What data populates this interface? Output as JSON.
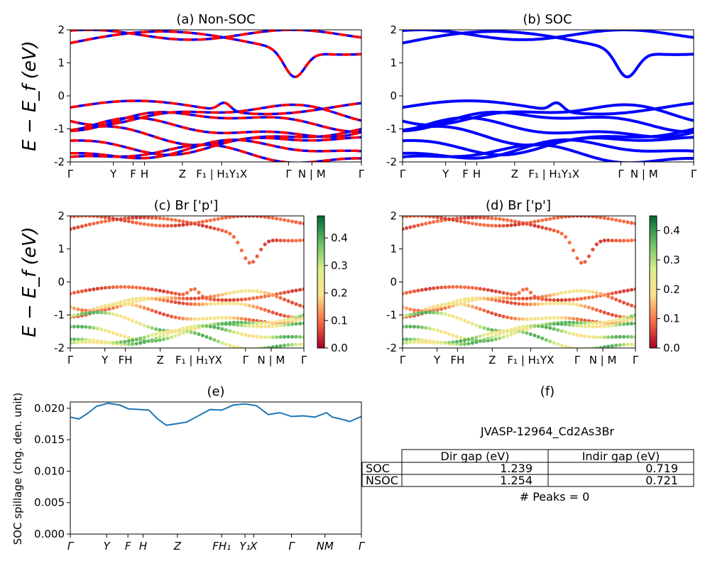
{
  "panels": {
    "a": {
      "title": "(a) Non-SOC"
    },
    "b": {
      "title": "(b) SOC"
    },
    "c": {
      "title": "(c)  Br ['p']"
    },
    "d": {
      "title": "(d) Br ['p']"
    },
    "e": {
      "title": "(e)"
    },
    "f": {
      "title": "(f)"
    }
  },
  "ylabels": {
    "band": "E − E_f (eV)",
    "spillage": "SOC spillage (chg. den. unit)"
  },
  "band_kpoints_ab": [
    "Γ",
    "Y",
    "F",
    "H",
    "Z",
    "F₁ | H₁Y₁X",
    "Γ",
    "N | M",
    "Γ"
  ],
  "band_kpoints_cd": [
    "Γ",
    "Y",
    "FH",
    "Z",
    "F₁ | H₁YX",
    "Γ",
    "N | M",
    "Γ"
  ],
  "spill_kpoints": [
    "Γ",
    "Y",
    "F",
    "H",
    "Z",
    "FH₁",
    "Y₁",
    "X",
    "Γ",
    "NM",
    "Γ"
  ],
  "colorbar_c": {
    "ticks": [
      "0.0",
      "0.1",
      "0.2",
      "0.3",
      "0.4"
    ],
    "max": 0.48,
    "colors": [
      "#a50026",
      "#f46d43",
      "#fee08b",
      "#d9ef8b",
      "#66bd63",
      "#006837"
    ]
  },
  "colorbar_d": {
    "ticks": [
      "0.0",
      "0.1",
      "0.2",
      "0.3",
      "0.4"
    ],
    "max": 0.45
  },
  "info": {
    "material": "JVASP-12964_Cd2As3Br",
    "table_headers": [
      "Dir gap (eV)",
      "Indir gap (eV)"
    ],
    "rows": [
      {
        "label": "SOC",
        "dir": "1.239",
        "indir": "0.719"
      },
      {
        "label": "NSOC",
        "dir": "1.254",
        "indir": "0.721"
      }
    ],
    "peaks": "# Peaks = 0"
  },
  "chart_data": [
    {
      "type": "line",
      "title": "(a) Non-SOC",
      "ylabel": "E − E_f (eV)",
      "ylim": [
        -2,
        2
      ],
      "yticks": [
        -2,
        -1,
        0,
        1,
        2
      ],
      "x_tick_labels": [
        "Γ",
        "Y",
        "F",
        "H",
        "Z",
        "F₁ | H₁",
        "Y₁",
        "X",
        "Γ",
        "N | M",
        "Γ"
      ],
      "series_colors": [
        "#ff0000",
        "#0000ff"
      ],
      "x": [
        0.0,
        0.15,
        0.3,
        0.45,
        0.6,
        0.75,
        0.9,
        1.0
      ],
      "series": [
        {
          "values": [
            1.5,
            1.7,
            1.9,
            1.85,
            1.8,
            1.75,
            1.6,
            1.5
          ]
        },
        {
          "values": [
            -0.4,
            -0.3,
            -0.2,
            -0.5,
            -0.6,
            -0.45,
            -0.3,
            -0.4
          ]
        },
        {
          "values": [
            -0.7,
            -0.8,
            -1.1,
            -1.0,
            -0.9,
            -1.2,
            -0.8,
            -0.7
          ]
        },
        {
          "values": [
            -1.6,
            -1.4,
            -1.7,
            -1.5,
            -1.6,
            -1.8,
            -1.5,
            -1.6
          ]
        }
      ]
    },
    {
      "type": "line",
      "title": "(b) SOC",
      "ylim": [
        -2,
        2
      ],
      "yticks": [
        -2,
        -1,
        0,
        1,
        2
      ],
      "series_colors": [
        "#0000ff"
      ],
      "x": [
        0.0,
        0.15,
        0.3,
        0.45,
        0.6,
        0.75,
        0.9,
        1.0
      ],
      "series": [
        {
          "values": [
            1.5,
            1.7,
            1.9,
            1.85,
            1.8,
            1.75,
            1.6,
            1.5
          ]
        },
        {
          "values": [
            -0.4,
            -0.3,
            -0.2,
            -0.5,
            -0.6,
            -0.45,
            -0.3,
            -0.4
          ]
        },
        {
          "values": [
            -0.7,
            -0.8,
            -1.1,
            -1.0,
            -0.9,
            -1.2,
            -0.8,
            -0.7
          ]
        },
        {
          "values": [
            -1.6,
            -1.4,
            -1.7,
            -1.5,
            -1.6,
            -1.8,
            -1.5,
            -1.6
          ]
        }
      ]
    },
    {
      "type": "scatter",
      "title": "(c)  Br ['p']",
      "ylabel": "E − E_f (eV)",
      "ylim": [
        -2,
        2
      ],
      "colorbar_range": [
        0.0,
        0.48
      ]
    },
    {
      "type": "scatter",
      "title": "(d) Br ['p']",
      "ylim": [
        -2,
        2
      ],
      "colorbar_range": [
        0.0,
        0.45
      ]
    },
    {
      "type": "line",
      "title": "(e)",
      "ylabel": "SOC spillage (chg. den. unit)",
      "ylim": [
        0.0,
        0.021
      ],
      "yticks": [
        "0.000",
        "0.005",
        "0.010",
        "0.015",
        "0.020"
      ],
      "series_colors": [
        "#1f77b4"
      ],
      "x": [
        0,
        0.03,
        0.06,
        0.09,
        0.13,
        0.17,
        0.2,
        0.24,
        0.27,
        0.3,
        0.33,
        0.36,
        0.4,
        0.44,
        0.48,
        0.52,
        0.56,
        0.6,
        0.64,
        0.68,
        0.72,
        0.76,
        0.8,
        0.84,
        0.88,
        0.9,
        0.92,
        0.96,
        1.0
      ],
      "series": [
        {
          "values": [
            0.0186,
            0.0183,
            0.0192,
            0.0203,
            0.0208,
            0.0205,
            0.0199,
            0.0198,
            0.0197,
            0.0183,
            0.0173,
            0.0175,
            0.0178,
            0.0188,
            0.0198,
            0.0197,
            0.0205,
            0.0207,
            0.0204,
            0.019,
            0.0193,
            0.0187,
            0.0188,
            0.0186,
            0.0193,
            0.0186,
            0.0184,
            0.0179,
            0.0187
          ]
        }
      ]
    }
  ]
}
